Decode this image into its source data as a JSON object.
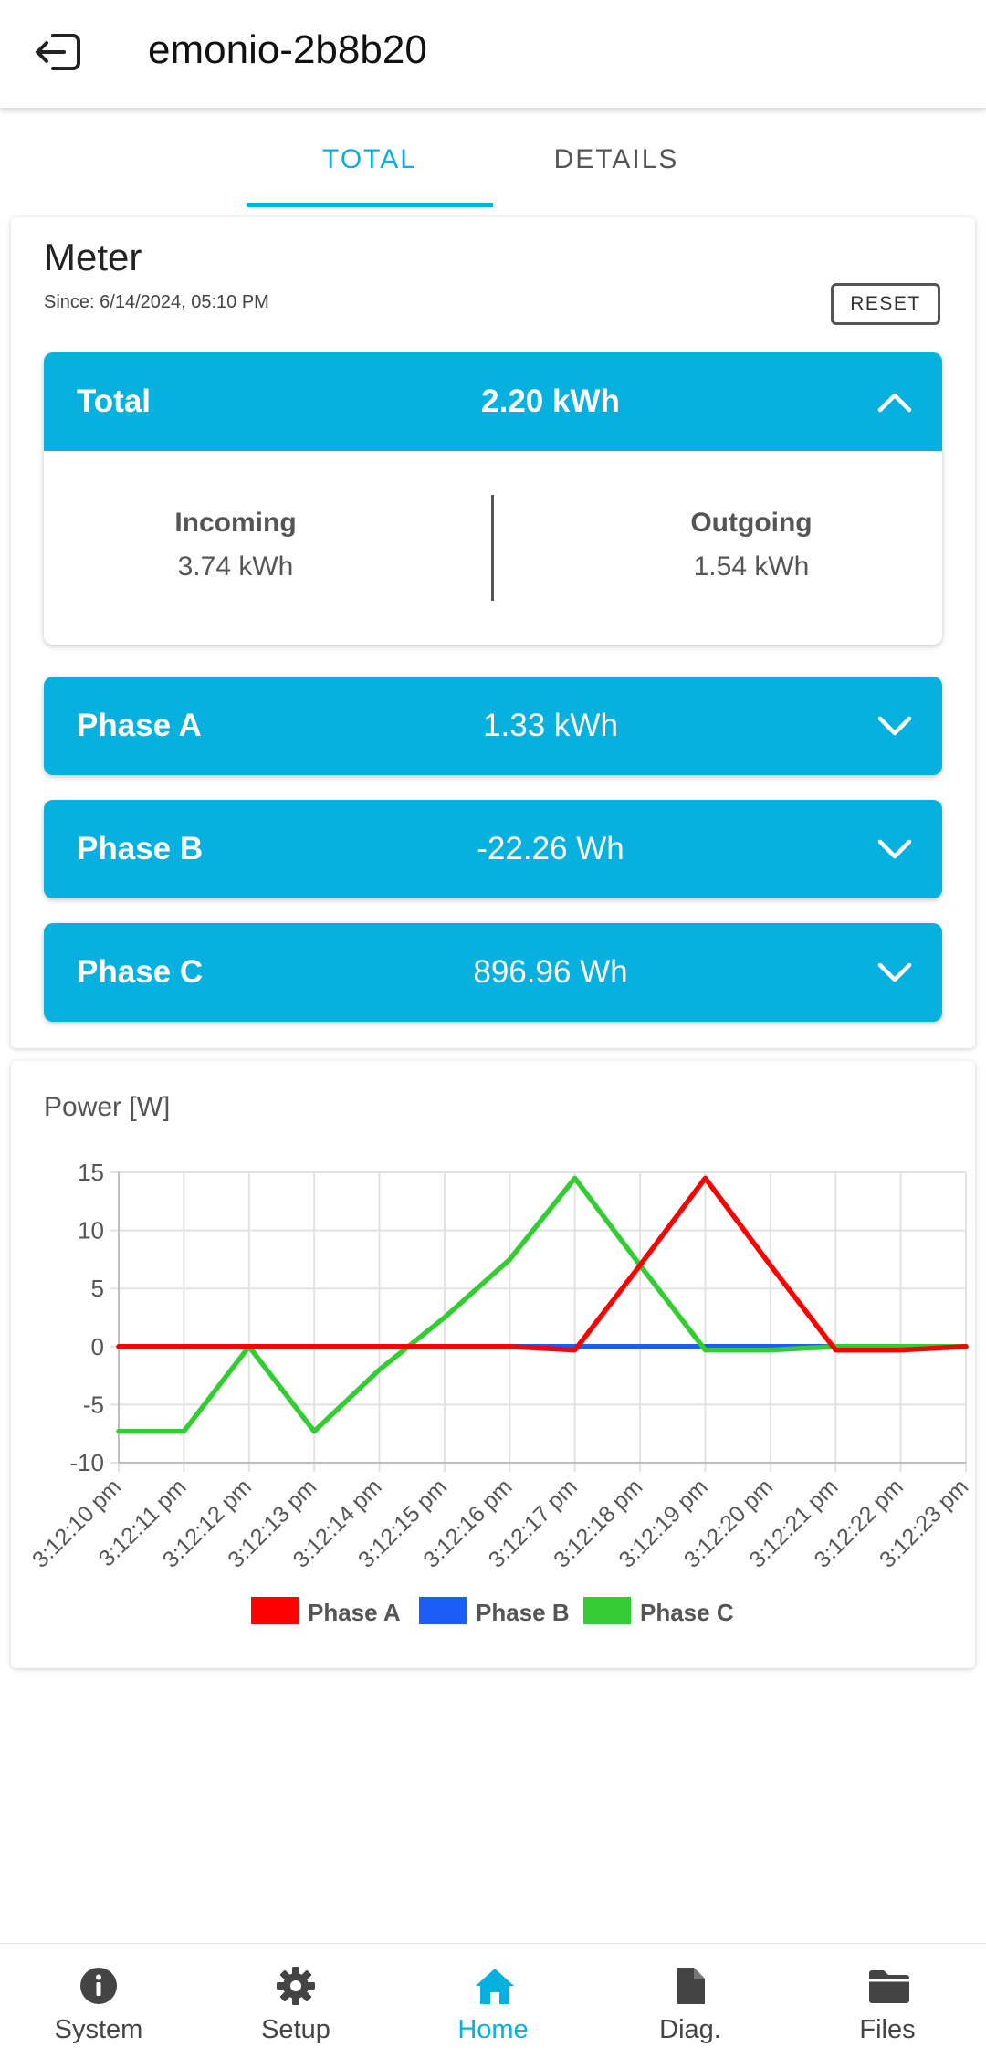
{
  "appbar": {
    "title": "emonio-2b8b20",
    "back_icon": "logout-icon"
  },
  "tabs": [
    {
      "label": "TOTAL",
      "active": true
    },
    {
      "label": "DETAILS",
      "active": false
    }
  ],
  "meter": {
    "title": "Meter",
    "since": "Since: 6/14/2024, 05:10 PM",
    "reset_label": "RESET",
    "total": {
      "label": "Total",
      "value": "2.20 kWh",
      "expanded": true,
      "incoming_label": "Incoming",
      "incoming_value": "3.74 kWh",
      "outgoing_label": "Outgoing",
      "outgoing_value": "1.54 kWh"
    },
    "phases": [
      {
        "label": "Phase A",
        "value": "1.33 kWh"
      },
      {
        "label": "Phase B",
        "value": "-22.26 Wh"
      },
      {
        "label": "Phase C",
        "value": "896.96 Wh"
      }
    ]
  },
  "chart_title": "Power [W]",
  "chart_data": {
    "type": "line",
    "title": "Power [W]",
    "xlabel": "",
    "ylabel": "",
    "ylim": [
      -10,
      15
    ],
    "yticks": [
      15,
      10,
      5,
      0,
      -5,
      -10
    ],
    "grid": true,
    "legend": "bottom",
    "categories": [
      "3:12:10 pm",
      "3:12:11 pm",
      "3:12:12 pm",
      "3:12:13 pm",
      "3:12:14 pm",
      "3:12:15 pm",
      "3:12:16 pm",
      "3:12:17 pm",
      "3:12:18 pm",
      "3:12:19 pm",
      "3:12:20 pm",
      "3:12:21 pm",
      "3:12:22 pm",
      "3:12:23 pm"
    ],
    "series": [
      {
        "name": "Phase A",
        "color": "#ff0000",
        "values": [
          0,
          0,
          0,
          0,
          0,
          0,
          0,
          -0.3,
          7,
          14.5,
          7,
          -0.3,
          -0.3,
          0
        ]
      },
      {
        "name": "Phase B",
        "color": "#1a5ef5",
        "values": [
          0,
          0,
          0,
          0,
          0,
          0,
          0,
          0,
          0,
          0,
          0,
          0,
          0,
          0
        ]
      },
      {
        "name": "Phase C",
        "color": "#33cc33",
        "values": [
          -7.3,
          -7.3,
          0,
          -7.3,
          -2,
          2.5,
          7.5,
          14.5,
          7,
          -0.3,
          -0.3,
          0,
          0,
          0
        ]
      }
    ]
  },
  "bottom_nav": [
    {
      "label": "System",
      "icon": "info-icon",
      "active": false
    },
    {
      "label": "Setup",
      "icon": "gear-icon",
      "active": false
    },
    {
      "label": "Home",
      "icon": "home-icon",
      "active": true
    },
    {
      "label": "Diag.",
      "icon": "document-icon",
      "active": false
    },
    {
      "label": "Files",
      "icon": "folder-icon",
      "active": false
    }
  ]
}
